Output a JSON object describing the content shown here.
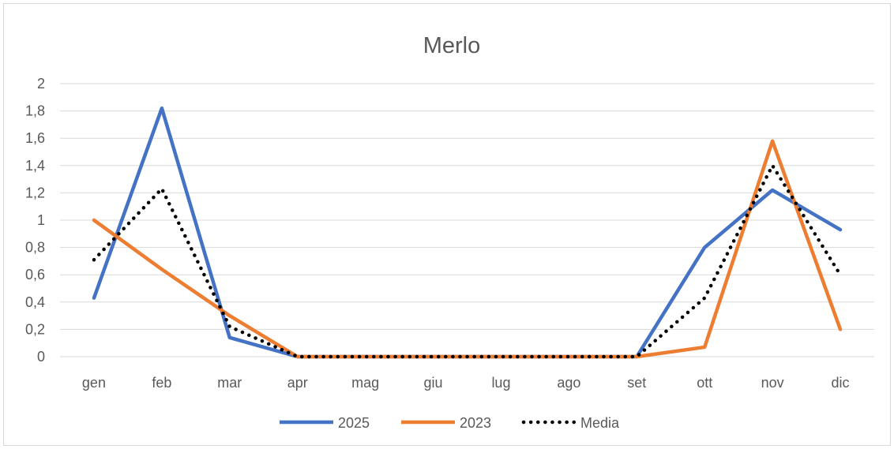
{
  "chart_data": {
    "type": "line",
    "title": "Merlo",
    "xlabel": "",
    "ylabel": "",
    "categories": [
      "gen",
      "feb",
      "mar",
      "apr",
      "mag",
      "giu",
      "lug",
      "ago",
      "set",
      "ott",
      "nov",
      "dic"
    ],
    "ylim": [
      0,
      2
    ],
    "yticks": [
      0,
      0.2,
      0.4,
      0.6,
      0.8,
      1,
      1.2,
      1.4,
      1.6,
      1.8,
      2
    ],
    "ytick_labels": [
      "0",
      "0,2",
      "0,4",
      "0,6",
      "0,8",
      "1",
      "1,2",
      "1,4",
      "1,6",
      "1,8",
      "2"
    ],
    "grid": true,
    "legend_position": "bottom",
    "series": [
      {
        "name": "2025",
        "color": "#4472c4",
        "style": "solid",
        "values": [
          0.43,
          1.82,
          0.14,
          0,
          0,
          0,
          0,
          0,
          0,
          0.8,
          1.22,
          0.93
        ]
      },
      {
        "name": "2023",
        "color": "#ed7d31",
        "style": "solid",
        "values": [
          1.0,
          0.64,
          0.3,
          0,
          0,
          0,
          0,
          0,
          0,
          0.07,
          1.58,
          0.2
        ]
      },
      {
        "name": "Media",
        "color": "#000000",
        "style": "dotted",
        "values": [
          0.71,
          1.23,
          0.22,
          0,
          0,
          0,
          0,
          0,
          0,
          0.43,
          1.4,
          0.6
        ]
      }
    ]
  }
}
